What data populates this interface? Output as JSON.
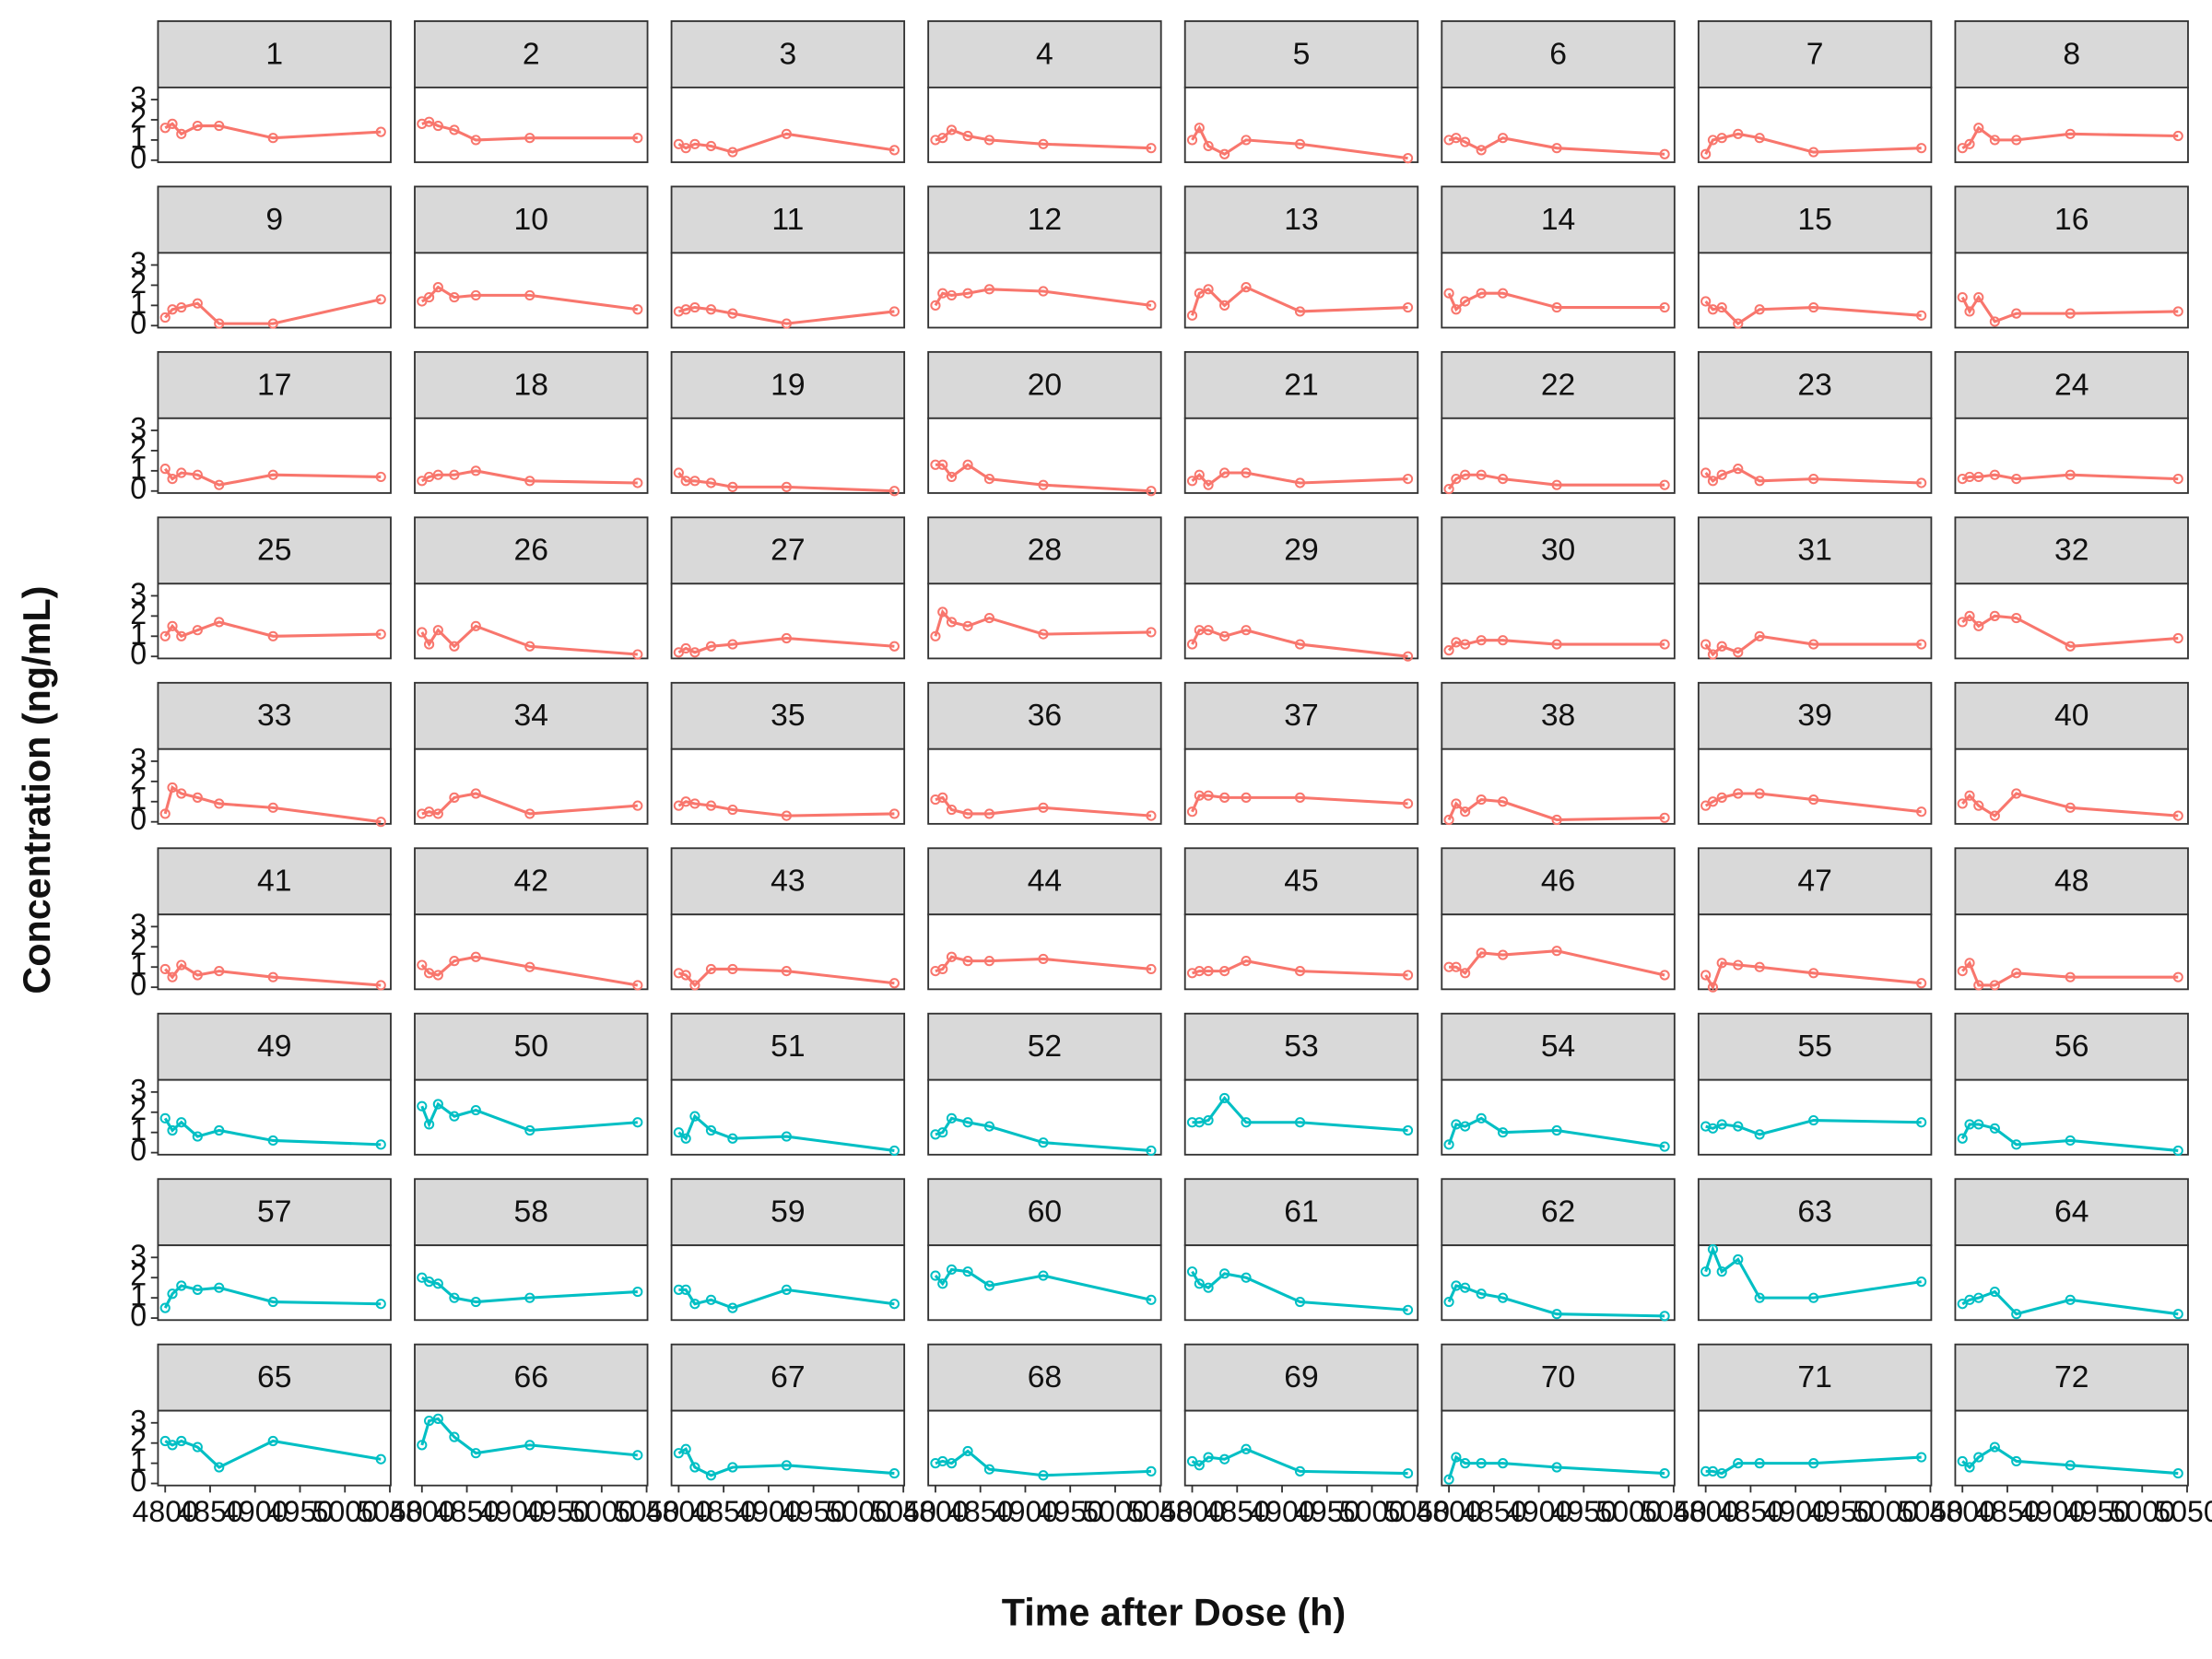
{
  "chart_data": {
    "type": "line",
    "x_label": "Time after Dose (h)",
    "y_label": "Concentration (ng/mL)",
    "x": [
      4800,
      4808,
      4818,
      4836,
      4860,
      4920,
      5040
    ],
    "xlim": [
      4792,
      5051
    ],
    "xticks": [
      4800,
      4850,
      4900,
      4950,
      5000,
      5050
    ],
    "ylim": [
      -0.1,
      3.6
    ],
    "yticks": [
      0,
      1,
      2,
      3
    ],
    "facets": [
      {
        "title": "1",
        "color": "#F8766D",
        "values": [
          1.6,
          1.8,
          1.3,
          1.7,
          1.7,
          1.1,
          1.4
        ]
      },
      {
        "title": "2",
        "color": "#F8766D",
        "values": [
          1.8,
          1.9,
          1.7,
          1.5,
          1.0,
          1.1,
          1.1
        ]
      },
      {
        "title": "3",
        "color": "#F8766D",
        "values": [
          0.8,
          0.6,
          0.8,
          0.7,
          0.4,
          1.3,
          0.5
        ]
      },
      {
        "title": "4",
        "color": "#F8766D",
        "values": [
          1.0,
          1.1,
          1.5,
          1.2,
          1.0,
          0.8,
          0.6
        ]
      },
      {
        "title": "5",
        "color": "#F8766D",
        "values": [
          1.0,
          1.6,
          0.7,
          0.3,
          1.0,
          0.8,
          0.1
        ]
      },
      {
        "title": "6",
        "color": "#F8766D",
        "values": [
          1.0,
          1.1,
          0.9,
          0.5,
          1.1,
          0.6,
          0.3
        ]
      },
      {
        "title": "7",
        "color": "#F8766D",
        "values": [
          0.3,
          1.0,
          1.1,
          1.3,
          1.1,
          0.4,
          0.6
        ]
      },
      {
        "title": "8",
        "color": "#F8766D",
        "values": [
          0.6,
          0.8,
          1.6,
          1.0,
          1.0,
          1.3,
          1.2
        ]
      },
      {
        "title": "9",
        "color": "#F8766D",
        "values": [
          0.4,
          0.8,
          0.9,
          1.1,
          0.1,
          0.1,
          1.3
        ]
      },
      {
        "title": "10",
        "color": "#F8766D",
        "values": [
          1.2,
          1.4,
          1.9,
          1.4,
          1.5,
          1.5,
          0.8
        ]
      },
      {
        "title": "11",
        "color": "#F8766D",
        "values": [
          0.7,
          0.8,
          0.9,
          0.8,
          0.6,
          0.1,
          0.7
        ]
      },
      {
        "title": "12",
        "color": "#F8766D",
        "values": [
          1.0,
          1.6,
          1.5,
          1.6,
          1.8,
          1.7,
          1.0
        ]
      },
      {
        "title": "13",
        "color": "#F8766D",
        "values": [
          0.5,
          1.6,
          1.8,
          1.0,
          1.9,
          0.7,
          0.9
        ]
      },
      {
        "title": "14",
        "color": "#F8766D",
        "values": [
          1.6,
          0.8,
          1.2,
          1.6,
          1.6,
          0.9,
          0.9
        ]
      },
      {
        "title": "15",
        "color": "#F8766D",
        "values": [
          1.2,
          0.8,
          0.9,
          0.1,
          0.8,
          0.9,
          0.5
        ]
      },
      {
        "title": "16",
        "color": "#F8766D",
        "values": [
          1.4,
          0.7,
          1.4,
          0.2,
          0.6,
          0.6,
          0.7
        ]
      },
      {
        "title": "17",
        "color": "#F8766D",
        "values": [
          1.1,
          0.6,
          0.9,
          0.8,
          0.3,
          0.8,
          0.7
        ]
      },
      {
        "title": "18",
        "color": "#F8766D",
        "values": [
          0.5,
          0.7,
          0.8,
          0.8,
          1.0,
          0.5,
          0.4
        ]
      },
      {
        "title": "19",
        "color": "#F8766D",
        "values": [
          0.9,
          0.5,
          0.5,
          0.4,
          0.2,
          0.2,
          0.0
        ]
      },
      {
        "title": "20",
        "color": "#F8766D",
        "values": [
          1.3,
          1.3,
          0.7,
          1.3,
          0.6,
          0.3,
          0.0
        ]
      },
      {
        "title": "21",
        "color": "#F8766D",
        "values": [
          0.5,
          0.8,
          0.3,
          0.9,
          0.9,
          0.4,
          0.6
        ]
      },
      {
        "title": "22",
        "color": "#F8766D",
        "values": [
          0.1,
          0.6,
          0.8,
          0.8,
          0.6,
          0.3,
          0.3
        ]
      },
      {
        "title": "23",
        "color": "#F8766D",
        "values": [
          0.9,
          0.5,
          0.8,
          1.1,
          0.5,
          0.6,
          0.4
        ]
      },
      {
        "title": "24",
        "color": "#F8766D",
        "values": [
          0.6,
          0.7,
          0.7,
          0.8,
          0.6,
          0.8,
          0.6
        ]
      },
      {
        "title": "25",
        "color": "#F8766D",
        "values": [
          1.0,
          1.5,
          1.0,
          1.3,
          1.7,
          1.0,
          1.1
        ]
      },
      {
        "title": "26",
        "color": "#F8766D",
        "values": [
          1.2,
          0.6,
          1.3,
          0.5,
          1.5,
          0.5,
          0.1
        ]
      },
      {
        "title": "27",
        "color": "#F8766D",
        "values": [
          0.2,
          0.4,
          0.2,
          0.5,
          0.6,
          0.9,
          0.5
        ]
      },
      {
        "title": "28",
        "color": "#F8766D",
        "values": [
          1.0,
          2.2,
          1.7,
          1.5,
          1.9,
          1.1,
          1.2
        ]
      },
      {
        "title": "29",
        "color": "#F8766D",
        "values": [
          0.6,
          1.3,
          1.3,
          1.0,
          1.3,
          0.6,
          0.0
        ]
      },
      {
        "title": "30",
        "color": "#F8766D",
        "values": [
          0.3,
          0.7,
          0.6,
          0.8,
          0.8,
          0.6,
          0.6
        ]
      },
      {
        "title": "31",
        "color": "#F8766D",
        "values": [
          0.6,
          0.1,
          0.5,
          0.2,
          1.0,
          0.6,
          0.6
        ]
      },
      {
        "title": "32",
        "color": "#F8766D",
        "values": [
          1.7,
          2.0,
          1.5,
          2.0,
          1.9,
          0.5,
          0.9
        ]
      },
      {
        "title": "33",
        "color": "#F8766D",
        "values": [
          0.4,
          1.7,
          1.4,
          1.2,
          0.9,
          0.7,
          0.0
        ]
      },
      {
        "title": "34",
        "color": "#F8766D",
        "values": [
          0.4,
          0.5,
          0.4,
          1.2,
          1.4,
          0.4,
          0.8
        ]
      },
      {
        "title": "35",
        "color": "#F8766D",
        "values": [
          0.8,
          1.0,
          0.9,
          0.8,
          0.6,
          0.3,
          0.4
        ]
      },
      {
        "title": "36",
        "color": "#F8766D",
        "values": [
          1.1,
          1.2,
          0.6,
          0.4,
          0.4,
          0.7,
          0.3
        ]
      },
      {
        "title": "37",
        "color": "#F8766D",
        "values": [
          0.5,
          1.3,
          1.3,
          1.2,
          1.2,
          1.2,
          0.9
        ]
      },
      {
        "title": "38",
        "color": "#F8766D",
        "values": [
          0.1,
          0.9,
          0.5,
          1.1,
          1.0,
          0.1,
          0.2
        ]
      },
      {
        "title": "39",
        "color": "#F8766D",
        "values": [
          0.8,
          1.0,
          1.2,
          1.4,
          1.4,
          1.1,
          0.5
        ]
      },
      {
        "title": "40",
        "color": "#F8766D",
        "values": [
          0.9,
          1.3,
          0.8,
          0.3,
          1.4,
          0.7,
          0.3
        ]
      },
      {
        "title": "41",
        "color": "#F8766D",
        "values": [
          0.9,
          0.5,
          1.1,
          0.6,
          0.8,
          0.5,
          0.1
        ]
      },
      {
        "title": "42",
        "color": "#F8766D",
        "values": [
          1.1,
          0.7,
          0.6,
          1.3,
          1.5,
          1.0,
          0.1
        ]
      },
      {
        "title": "43",
        "color": "#F8766D",
        "values": [
          0.7,
          0.6,
          0.1,
          0.9,
          0.9,
          0.8,
          0.2
        ]
      },
      {
        "title": "44",
        "color": "#F8766D",
        "values": [
          0.8,
          0.9,
          1.5,
          1.3,
          1.3,
          1.4,
          0.9
        ]
      },
      {
        "title": "45",
        "color": "#F8766D",
        "values": [
          0.7,
          0.8,
          0.8,
          0.8,
          1.3,
          0.8,
          0.6
        ]
      },
      {
        "title": "46",
        "color": "#F8766D",
        "values": [
          1.0,
          1.0,
          0.7,
          1.7,
          1.6,
          1.8,
          0.6
        ]
      },
      {
        "title": "47",
        "color": "#F8766D",
        "values": [
          0.6,
          0.0,
          1.2,
          1.1,
          1.0,
          0.7,
          0.2
        ]
      },
      {
        "title": "48",
        "color": "#F8766D",
        "values": [
          0.8,
          1.2,
          0.1,
          0.1,
          0.7,
          0.5,
          0.5
        ]
      },
      {
        "title": "49",
        "color": "#00BFC4",
        "values": [
          1.7,
          1.1,
          1.5,
          0.8,
          1.1,
          0.6,
          0.4
        ]
      },
      {
        "title": "50",
        "color": "#00BFC4",
        "values": [
          2.3,
          1.4,
          2.4,
          1.8,
          2.1,
          1.1,
          1.5
        ]
      },
      {
        "title": "51",
        "color": "#00BFC4",
        "values": [
          1.0,
          0.7,
          1.8,
          1.1,
          0.7,
          0.8,
          0.1
        ]
      },
      {
        "title": "52",
        "color": "#00BFC4",
        "values": [
          0.9,
          1.0,
          1.7,
          1.5,
          1.3,
          0.5,
          0.1
        ]
      },
      {
        "title": "53",
        "color": "#00BFC4",
        "values": [
          1.5,
          1.5,
          1.6,
          2.7,
          1.5,
          1.5,
          1.1
        ]
      },
      {
        "title": "54",
        "color": "#00BFC4",
        "values": [
          0.4,
          1.4,
          1.3,
          1.7,
          1.0,
          1.1,
          0.3
        ]
      },
      {
        "title": "55",
        "color": "#00BFC4",
        "values": [
          1.3,
          1.2,
          1.4,
          1.3,
          0.9,
          1.6,
          1.5
        ]
      },
      {
        "title": "56",
        "color": "#00BFC4",
        "values": [
          0.7,
          1.4,
          1.4,
          1.2,
          0.4,
          0.6,
          0.1
        ]
      },
      {
        "title": "57",
        "color": "#00BFC4",
        "values": [
          0.5,
          1.2,
          1.6,
          1.4,
          1.5,
          0.8,
          0.7
        ]
      },
      {
        "title": "58",
        "color": "#00BFC4",
        "values": [
          2.0,
          1.8,
          1.7,
          1.0,
          0.8,
          1.0,
          1.3
        ]
      },
      {
        "title": "59",
        "color": "#00BFC4",
        "values": [
          1.4,
          1.4,
          0.7,
          0.9,
          0.5,
          1.4,
          0.7
        ]
      },
      {
        "title": "60",
        "color": "#00BFC4",
        "values": [
          2.1,
          1.7,
          2.4,
          2.3,
          1.6,
          2.1,
          0.9
        ]
      },
      {
        "title": "61",
        "color": "#00BFC4",
        "values": [
          2.3,
          1.7,
          1.5,
          2.2,
          2.0,
          0.8,
          0.4
        ]
      },
      {
        "title": "62",
        "color": "#00BFC4",
        "values": [
          0.8,
          1.6,
          1.5,
          1.2,
          1.0,
          0.2,
          0.1
        ]
      },
      {
        "title": "63",
        "color": "#00BFC4",
        "values": [
          2.3,
          3.4,
          2.3,
          2.9,
          1.0,
          1.0,
          1.8
        ]
      },
      {
        "title": "64",
        "color": "#00BFC4",
        "values": [
          0.7,
          0.9,
          1.0,
          1.3,
          0.2,
          0.9,
          0.2
        ]
      },
      {
        "title": "65",
        "color": "#00BFC4",
        "values": [
          2.1,
          1.9,
          2.1,
          1.8,
          0.8,
          2.1,
          1.2
        ]
      },
      {
        "title": "66",
        "color": "#00BFC4",
        "values": [
          1.9,
          3.1,
          3.2,
          2.3,
          1.5,
          1.9,
          1.4
        ]
      },
      {
        "title": "67",
        "color": "#00BFC4",
        "values": [
          1.5,
          1.7,
          0.8,
          0.4,
          0.8,
          0.9,
          0.5
        ]
      },
      {
        "title": "68",
        "color": "#00BFC4",
        "values": [
          1.0,
          1.1,
          1.0,
          1.6,
          0.7,
          0.4,
          0.6
        ]
      },
      {
        "title": "69",
        "color": "#00BFC4",
        "values": [
          1.1,
          0.9,
          1.3,
          1.2,
          1.7,
          0.6,
          0.5
        ]
      },
      {
        "title": "70",
        "color": "#00BFC4",
        "values": [
          0.2,
          1.3,
          1.0,
          1.0,
          1.0,
          0.8,
          0.5
        ]
      },
      {
        "title": "71",
        "color": "#00BFC4",
        "values": [
          0.6,
          0.6,
          0.5,
          1.0,
          1.0,
          1.0,
          1.3
        ]
      },
      {
        "title": "72",
        "color": "#00BFC4",
        "values": [
          1.1,
          0.8,
          1.3,
          1.8,
          1.1,
          0.9,
          0.5
        ]
      }
    ]
  }
}
